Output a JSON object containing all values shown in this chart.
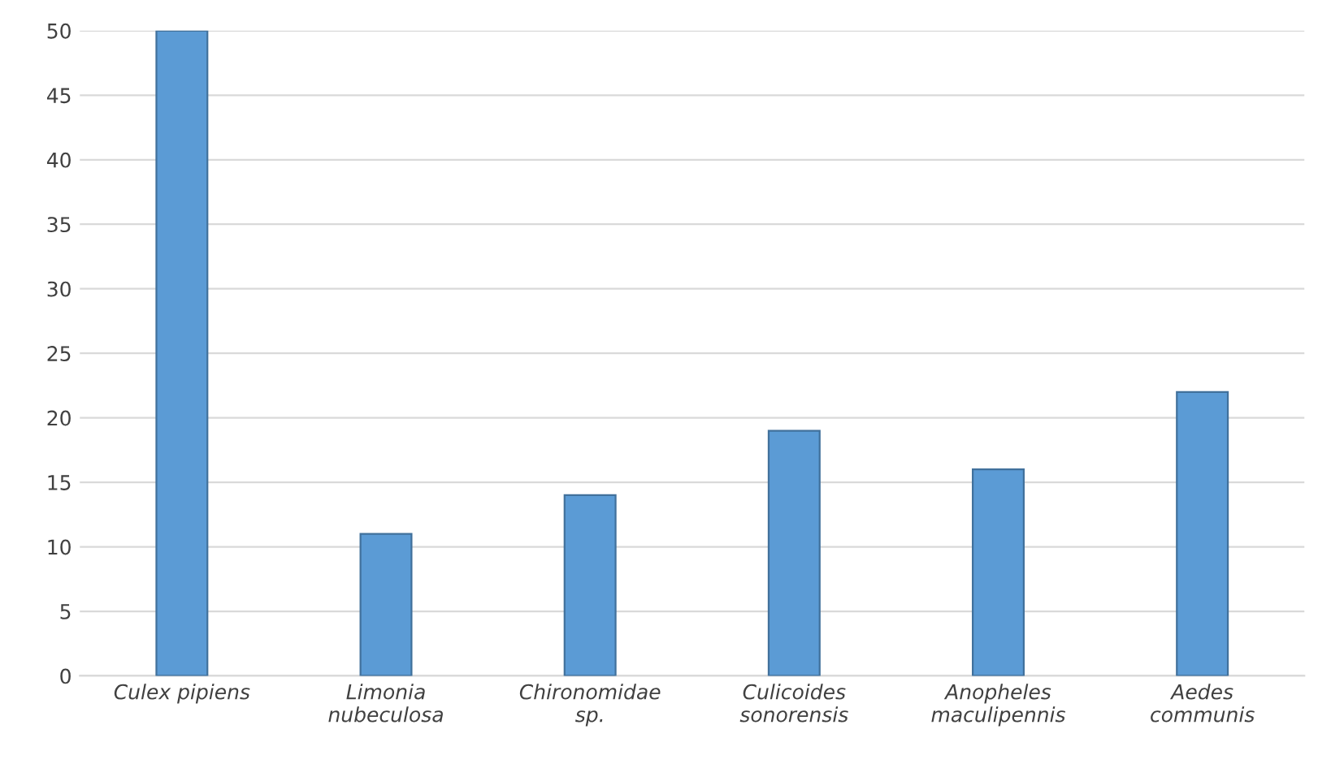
{
  "chart_data": {
    "type": "bar",
    "categories": [
      "Culex pipiens",
      "Limonia\nnubeculosa",
      "Chironomidae\nsp.",
      "Culicoides\nsonorensis",
      "Anopheles\nmaculipennis",
      "Aedes\ncommunis"
    ],
    "values": [
      50,
      11,
      14,
      19,
      16,
      22
    ],
    "color": "#5b9bd5",
    "ylim": [
      0,
      50
    ],
    "yticks": [
      0,
      5,
      10,
      15,
      20,
      25,
      30,
      35,
      40,
      45,
      50
    ],
    "grid": "y"
  }
}
